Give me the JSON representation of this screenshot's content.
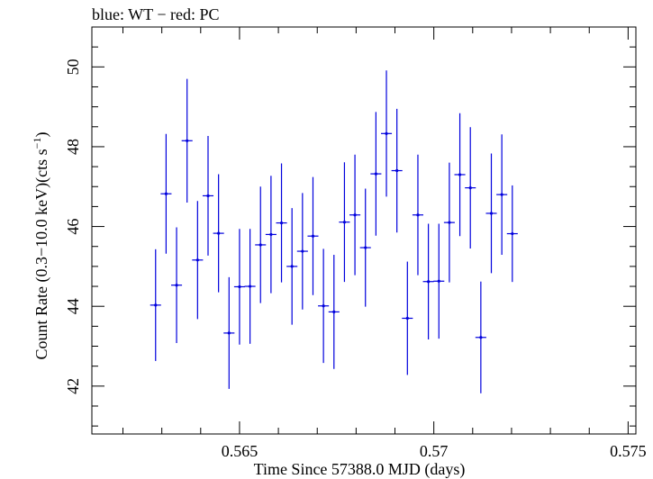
{
  "chart_data": {
    "type": "scatter",
    "title": "blue: WT − red: PC",
    "xlabel": "Time Since 57388.0 MJD (days)",
    "ylabel_main": "Count Rate (0.3−10.0 keV)(cts s",
    "ylabel_sup": "−1",
    "ylabel_close": ")",
    "xlim": [
      0.5612,
      0.5752
    ],
    "ylim": [
      40.8,
      51.0
    ],
    "xticks": [
      0.565,
      0.57,
      0.575
    ],
    "xtick_labels": [
      "0.565",
      "0.57",
      "0.575"
    ],
    "yticks": [
      42,
      44,
      46,
      48,
      50
    ],
    "ytick_labels": [
      "42",
      "44",
      "46",
      "48",
      "50"
    ],
    "grid": false,
    "series": [
      {
        "color": "#0000dd",
        "points": [
          {
            "x": 0.56284,
            "y": 44.03,
            "xerr": 0.00014,
            "ylo": 42.63,
            "yhi": 45.43
          },
          {
            "x": 0.56311,
            "y": 46.82,
            "xerr": 0.00014,
            "ylo": 45.32,
            "yhi": 48.32
          },
          {
            "x": 0.56338,
            "y": 44.53,
            "xerr": 0.00014,
            "ylo": 43.08,
            "yhi": 45.98
          },
          {
            "x": 0.56365,
            "y": 48.15,
            "xerr": 0.00014,
            "ylo": 46.6,
            "yhi": 49.7
          },
          {
            "x": 0.56392,
            "y": 45.16,
            "xerr": 0.00014,
            "ylo": 43.68,
            "yhi": 46.64
          },
          {
            "x": 0.56419,
            "y": 46.77,
            "xerr": 0.00014,
            "ylo": 45.27,
            "yhi": 48.27
          },
          {
            "x": 0.56446,
            "y": 45.83,
            "xerr": 0.00014,
            "ylo": 44.35,
            "yhi": 47.31
          },
          {
            "x": 0.56473,
            "y": 43.33,
            "xerr": 0.00014,
            "ylo": 41.93,
            "yhi": 44.73
          },
          {
            "x": 0.565,
            "y": 44.49,
            "xerr": 0.00014,
            "ylo": 43.04,
            "yhi": 45.94
          },
          {
            "x": 0.56527,
            "y": 44.5,
            "xerr": 0.00014,
            "ylo": 43.06,
            "yhi": 45.94
          },
          {
            "x": 0.56554,
            "y": 45.54,
            "xerr": 0.00014,
            "ylo": 44.08,
            "yhi": 47.0
          },
          {
            "x": 0.56581,
            "y": 45.8,
            "xerr": 0.00014,
            "ylo": 44.33,
            "yhi": 47.27
          },
          {
            "x": 0.56608,
            "y": 46.09,
            "xerr": 0.00014,
            "ylo": 44.6,
            "yhi": 47.58
          },
          {
            "x": 0.56635,
            "y": 45.0,
            "xerr": 0.00014,
            "ylo": 43.54,
            "yhi": 46.46
          },
          {
            "x": 0.56662,
            "y": 45.38,
            "xerr": 0.00014,
            "ylo": 43.92,
            "yhi": 46.84
          },
          {
            "x": 0.56689,
            "y": 45.76,
            "xerr": 0.00014,
            "ylo": 44.28,
            "yhi": 47.24
          },
          {
            "x": 0.56716,
            "y": 44.01,
            "xerr": 0.00014,
            "ylo": 42.58,
            "yhi": 45.44
          },
          {
            "x": 0.56743,
            "y": 43.86,
            "xerr": 0.00014,
            "ylo": 42.43,
            "yhi": 45.29
          },
          {
            "x": 0.5677,
            "y": 46.11,
            "xerr": 0.00014,
            "ylo": 44.61,
            "yhi": 47.61
          },
          {
            "x": 0.56797,
            "y": 46.29,
            "xerr": 0.00014,
            "ylo": 44.78,
            "yhi": 47.8
          },
          {
            "x": 0.56824,
            "y": 45.47,
            "xerr": 0.00014,
            "ylo": 43.99,
            "yhi": 46.95
          },
          {
            "x": 0.56851,
            "y": 47.32,
            "xerr": 0.00014,
            "ylo": 45.77,
            "yhi": 48.87
          },
          {
            "x": 0.56878,
            "y": 48.33,
            "xerr": 0.00014,
            "ylo": 46.75,
            "yhi": 49.91
          },
          {
            "x": 0.56905,
            "y": 47.4,
            "xerr": 0.00014,
            "ylo": 45.85,
            "yhi": 48.95
          },
          {
            "x": 0.56932,
            "y": 43.7,
            "xerr": 0.00014,
            "ylo": 42.28,
            "yhi": 45.12
          },
          {
            "x": 0.56959,
            "y": 46.29,
            "xerr": 0.00014,
            "ylo": 44.78,
            "yhi": 47.8
          },
          {
            "x": 0.56986,
            "y": 44.62,
            "xerr": 0.00014,
            "ylo": 43.17,
            "yhi": 46.07
          },
          {
            "x": 0.57013,
            "y": 44.63,
            "xerr": 0.00014,
            "ylo": 43.19,
            "yhi": 46.07
          },
          {
            "x": 0.5704,
            "y": 46.1,
            "xerr": 0.00014,
            "ylo": 44.6,
            "yhi": 47.6
          },
          {
            "x": 0.57067,
            "y": 47.3,
            "xerr": 0.00014,
            "ylo": 45.76,
            "yhi": 48.84
          },
          {
            "x": 0.57094,
            "y": 46.97,
            "xerr": 0.00014,
            "ylo": 45.45,
            "yhi": 48.49
          },
          {
            "x": 0.57121,
            "y": 43.22,
            "xerr": 0.00014,
            "ylo": 41.82,
            "yhi": 44.62
          },
          {
            "x": 0.57148,
            "y": 46.33,
            "xerr": 0.00014,
            "ylo": 44.83,
            "yhi": 47.83
          },
          {
            "x": 0.57175,
            "y": 46.8,
            "xerr": 0.00014,
            "ylo": 45.29,
            "yhi": 48.31
          },
          {
            "x": 0.57202,
            "y": 45.82,
            "xerr": 0.00014,
            "ylo": 44.61,
            "yhi": 47.03
          }
        ]
      }
    ]
  }
}
